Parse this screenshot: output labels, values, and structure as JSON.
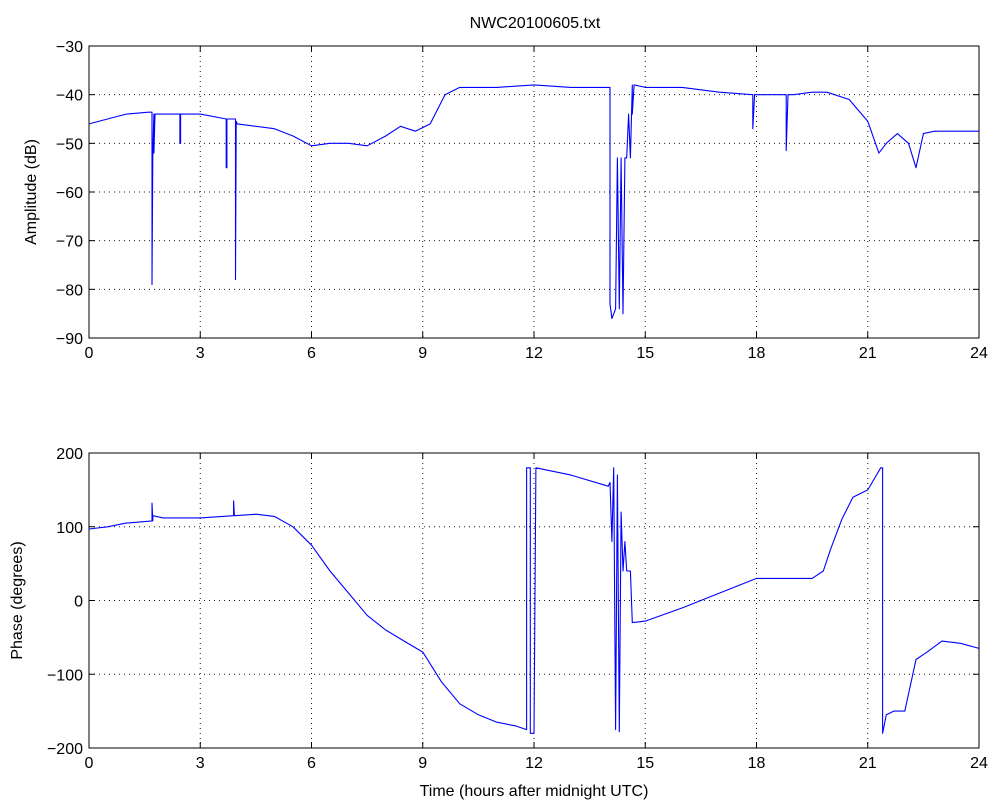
{
  "page": {
    "title": "NWC20100605.txt"
  },
  "chart_data": [
    {
      "type": "line",
      "title": "NWC20100605.txt",
      "xlabel": "",
      "ylabel": "Amplitude (dB)",
      "xlim": [
        0,
        24
      ],
      "ylim": [
        -90,
        -30
      ],
      "xticks": [
        "0",
        "3",
        "6",
        "9",
        "12",
        "15",
        "18",
        "21",
        "24"
      ],
      "yticks": [
        "−90",
        "−80",
        "−70",
        "−60",
        "−50",
        "−40",
        "−30"
      ],
      "grid": true,
      "color": "#0000ff",
      "series": [
        {
          "x": [
            0,
            0.5,
            1.0,
            1.6,
            1.7,
            1.7,
            1.72,
            1.75,
            1.75,
            1.78,
            2.2,
            2.45,
            2.45,
            2.47,
            2.47,
            3.0,
            3.7,
            3.7,
            3.72,
            3.72,
            3.95,
            3.95,
            3.97,
            4.0,
            5.0,
            5.5,
            6.0,
            6.5,
            7.0,
            7.5,
            8.0,
            8.4,
            8.8,
            9.2,
            9.6,
            10.0,
            11.0,
            12.0,
            13.0,
            14.0,
            14.05,
            14.05,
            14.1,
            14.2,
            14.25,
            14.3,
            14.35,
            14.4,
            14.45,
            14.5,
            14.55,
            14.6,
            14.65,
            14.65,
            14.7,
            15.0,
            16.0,
            17.0,
            17.9,
            17.9,
            17.95,
            18.0,
            18.5,
            18.8,
            18.8,
            18.85,
            19.0,
            19.5,
            19.9,
            20.5,
            21.0,
            21.3,
            21.5,
            21.8,
            22.1,
            22.3,
            22.5,
            22.8,
            23.5,
            24.0
          ],
          "y": [
            -46,
            -45,
            -44,
            -43.6,
            -43.6,
            -79,
            -52,
            -44,
            -52,
            -44,
            -44,
            -44,
            -50,
            -50,
            -44,
            -44,
            -45,
            -55,
            -55,
            -45,
            -45,
            -78,
            -45.5,
            -46,
            -47,
            -48.5,
            -50.5,
            -50,
            -50,
            -50.5,
            -48.5,
            -46.5,
            -47.5,
            -46,
            -40,
            -38.5,
            -38.5,
            -38,
            -38.5,
            -38.5,
            -38.5,
            -83,
            -86,
            -84,
            -53,
            -84,
            -53,
            -85,
            -53,
            -53,
            -44,
            -53,
            -38,
            -44,
            -38,
            -38.5,
            -38.5,
            -39.5,
            -40,
            -47,
            -40,
            -40,
            -40,
            -40,
            -51.5,
            -40,
            -40,
            -39.5,
            -39.5,
            -41,
            -45.5,
            -52,
            -50,
            -48,
            -50,
            -55,
            -48,
            -47.5,
            -47.5,
            -47.5
          ]
        }
      ]
    },
    {
      "type": "line",
      "title": "",
      "xlabel": "Time (hours after midnight UTC)",
      "ylabel": "Phase (degrees)",
      "xlim": [
        0,
        24
      ],
      "ylim": [
        -200,
        200
      ],
      "xticks": [
        "0",
        "3",
        "6",
        "9",
        "12",
        "15",
        "18",
        "21",
        "24"
      ],
      "yticks": [
        "−200",
        "−100",
        "0",
        "100",
        "200"
      ],
      "grid": true,
      "color": "#0000ff",
      "series": [
        {
          "x": [
            0,
            0.5,
            1.0,
            1.7,
            1.7,
            1.72,
            1.72,
            2.0,
            3.0,
            3.9,
            3.9,
            3.92,
            3.92,
            4.5,
            5.0,
            5.5,
            6.0,
            6.5,
            7.0,
            7.5,
            8.0,
            8.5,
            9.0,
            9.5,
            10.0,
            10.5,
            11.0,
            11.5,
            11.8,
            11.8,
            11.9,
            11.9,
            12.0,
            12.05,
            12.05,
            13.0,
            14.0,
            14.05,
            14.1,
            14.15,
            14.2,
            14.25,
            14.3,
            14.35,
            14.4,
            14.45,
            14.5,
            14.55,
            14.6,
            14.65,
            14.65,
            15.0,
            16.0,
            17.0,
            18.0,
            18.5,
            19.0,
            19.5,
            19.8,
            20.0,
            20.3,
            20.6,
            21.0,
            21.35,
            21.4,
            21.4,
            21.5,
            21.7,
            22.0,
            22.3,
            22.6,
            23.0,
            23.5,
            24.0
          ],
          "y": [
            97,
            100,
            105,
            108,
            132,
            108,
            115,
            112,
            112,
            115,
            135,
            115,
            115,
            117,
            114,
            100,
            75,
            40,
            10,
            -20,
            -40,
            -55,
            -70,
            -110,
            -140,
            -155,
            -165,
            -170,
            -175,
            180,
            180,
            -180,
            -180,
            180,
            180,
            170,
            155,
            160,
            80,
            180,
            -175,
            170,
            -178,
            120,
            40,
            80,
            40,
            40,
            40,
            -30,
            -30,
            -28,
            -10,
            10,
            30,
            30,
            30,
            30,
            40,
            70,
            110,
            140,
            150,
            180,
            180,
            -180,
            -155,
            -150,
            -150,
            -80,
            -70,
            -55,
            -58,
            -65
          ]
        }
      ]
    }
  ]
}
